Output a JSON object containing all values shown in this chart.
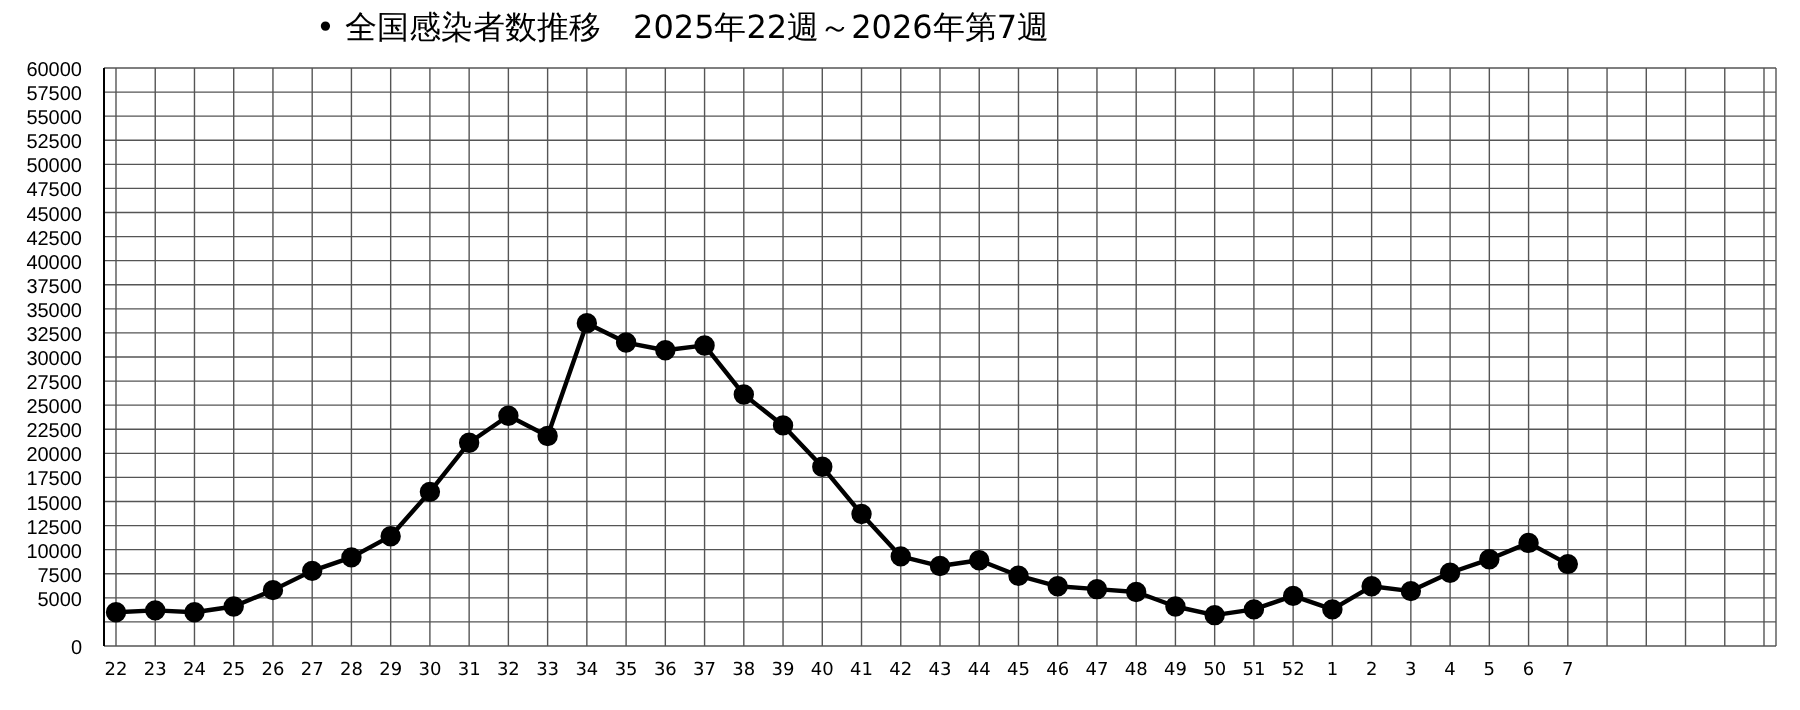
{
  "chart_data": {
    "type": "line",
    "title": "• 全国感染者数推移　2025年22週～2026年第7週",
    "categories": [
      "22",
      "23",
      "24",
      "25",
      "26",
      "27",
      "28",
      "29",
      "30",
      "31",
      "32",
      "33",
      "34",
      "35",
      "36",
      "37",
      "38",
      "39",
      "40",
      "41",
      "42",
      "43",
      "44",
      "45",
      "46",
      "47",
      "48",
      "49",
      "50",
      "51",
      "52",
      "1",
      "2",
      "3",
      "4",
      "5",
      "6",
      "7",
      null,
      null,
      null,
      null,
      null
    ],
    "series": [
      {
        "color": "#000000",
        "values": [
          3500,
          3700,
          3500,
          4100,
          5800,
          7800,
          9200,
          11400,
          16000,
          21100,
          23900,
          21800,
          33500,
          31500,
          30700,
          31200,
          26100,
          22900,
          18600,
          13700,
          9300,
          8300,
          8900,
          7300,
          6200,
          5900,
          5600,
          4100,
          3200,
          3800,
          5200,
          3800,
          6200,
          5700,
          7600,
          9000,
          10700,
          8500,
          null,
          null,
          null,
          null,
          null
        ]
      }
    ],
    "ylim": [
      0,
      60000
    ],
    "yticks": [
      0,
      {
        "value": 2500,
        "label": null
      },
      5000,
      7500,
      10000,
      12500,
      15000,
      17500,
      20000,
      22500,
      25000,
      27500,
      30000,
      32500,
      35000,
      37500,
      40000,
      42500,
      45000,
      47500,
      50000,
      52500,
      55000,
      57500,
      60000
    ],
    "grid": true,
    "legend": false,
    "marker": "circle",
    "line_style": "solid"
  }
}
